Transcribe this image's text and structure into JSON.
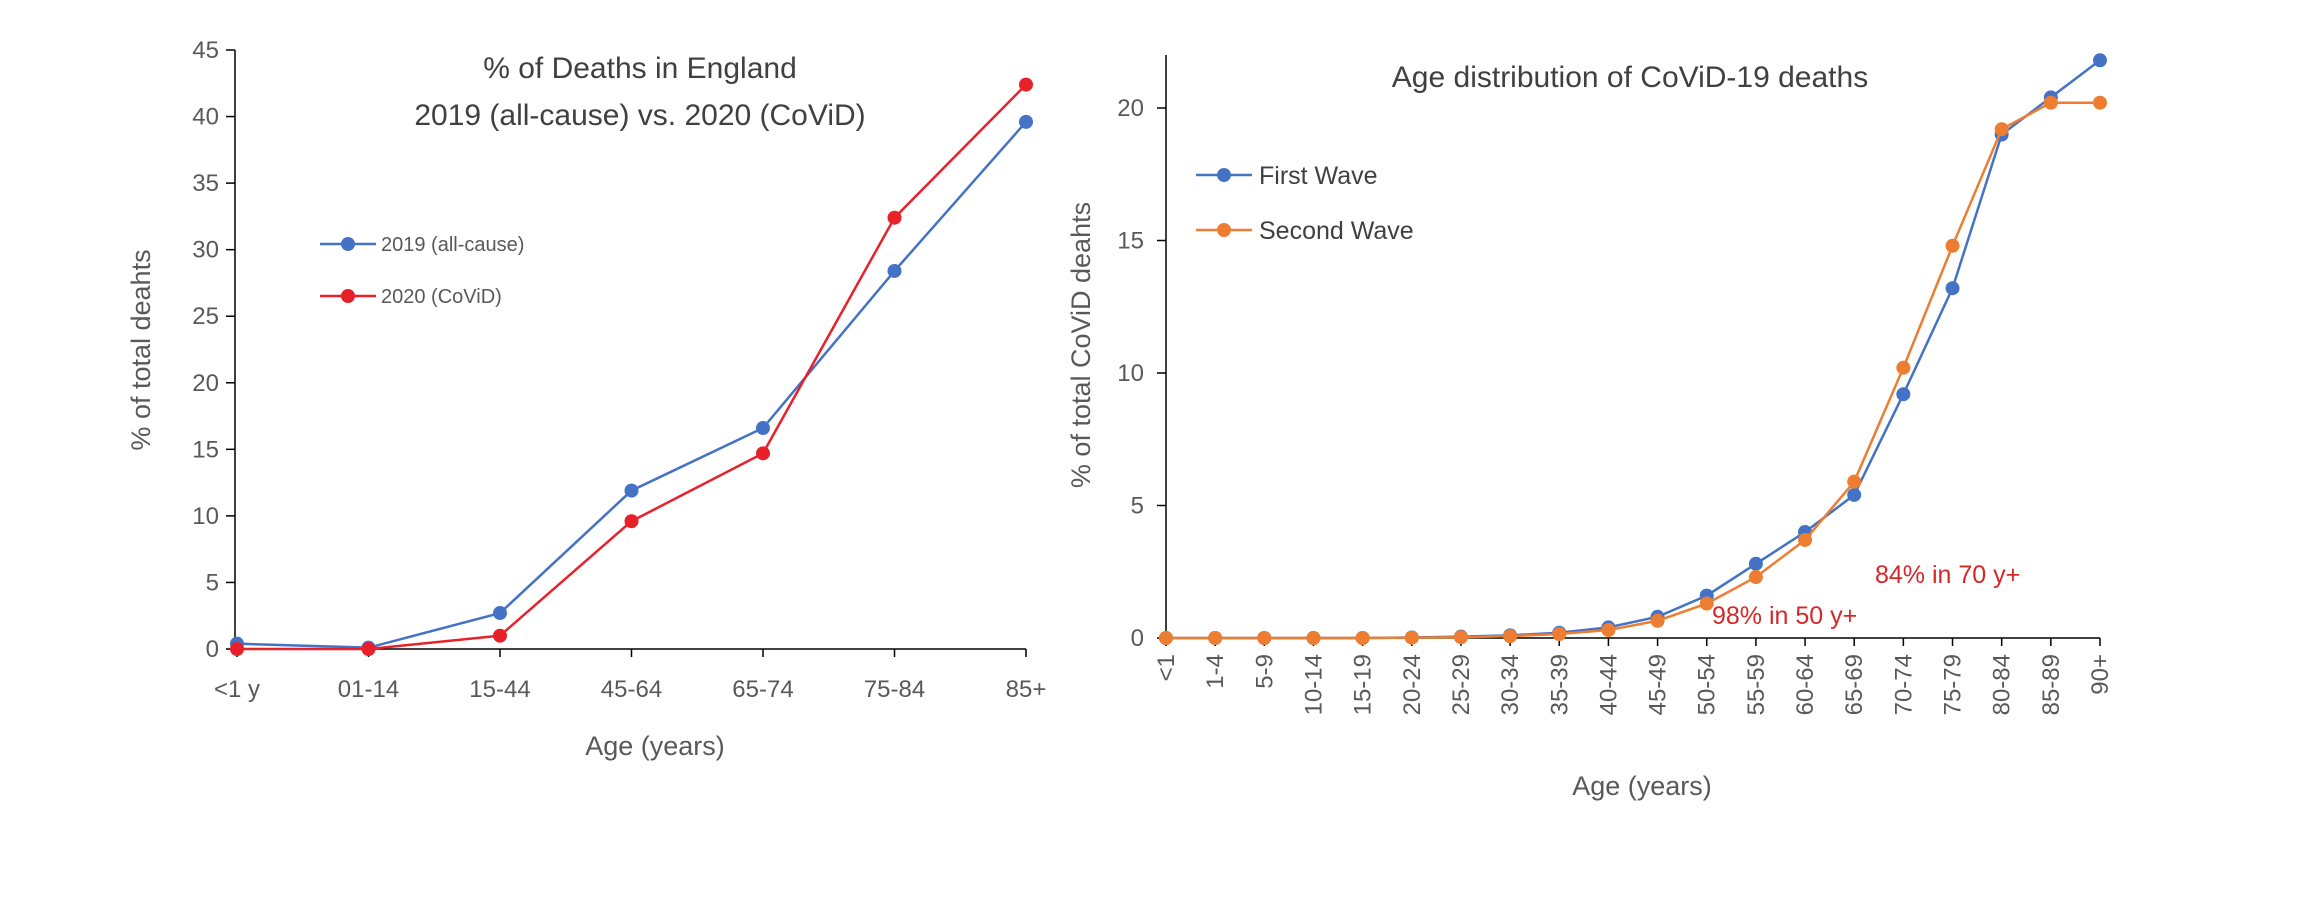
{
  "chart_data": [
    {
      "type": "line",
      "title": [
        "% of Deaths in England",
        "2019 (all-cause) vs. 2020 (CoViD)"
      ],
      "xlabel": "Age (years)",
      "ylabel": "% of total deahts",
      "categories": [
        "<1 y",
        "01-14",
        "15-44",
        "45-64",
        "65-74",
        "75-84",
        "85+"
      ],
      "ylim": [
        0,
        45
      ],
      "yticks": [
        0,
        5,
        10,
        15,
        20,
        25,
        30,
        35,
        40,
        45
      ],
      "legend_position": "left-middle",
      "grid": false,
      "series": [
        {
          "name": "2019 (all-cause)",
          "color": "#4472c4",
          "values": [
            0.4,
            0.1,
            2.7,
            11.9,
            16.6,
            28.4,
            39.6
          ]
        },
        {
          "name": "2020 (CoViD)",
          "color": "#e8202a",
          "values": [
            0.0,
            0.0,
            1.0,
            9.6,
            14.7,
            32.4,
            42.4
          ]
        }
      ]
    },
    {
      "type": "line",
      "title": "Age distribution of CoViD-19 deaths",
      "xlabel": "Age (years)",
      "ylabel": "% of total CoViD deahts",
      "categories": [
        "<1",
        "1-4",
        "5-9",
        "10-14",
        "15-19",
        "20-24",
        "25-29",
        "30-34",
        "35-39",
        "40-44",
        "45-49",
        "50-54",
        "55-59",
        "60-64",
        "65-69",
        "70-74",
        "75-79",
        "80-84",
        "85-89",
        "90+"
      ],
      "ylim": [
        0,
        22
      ],
      "yticks": [
        0,
        5,
        10,
        15,
        20
      ],
      "legend_position": "top-left",
      "grid": false,
      "series": [
        {
          "name": "First Wave",
          "color": "#4472c4",
          "values": [
            0,
            0,
            0,
            0,
            0,
            0.02,
            0.05,
            0.1,
            0.2,
            0.4,
            0.8,
            1.6,
            2.8,
            4.0,
            5.4,
            9.2,
            13.2,
            19.0,
            20.4,
            21.8
          ]
        },
        {
          "name": "Second Wave",
          "color": "#ed7d31",
          "values": [
            0,
            0,
            0,
            0,
            0,
            0.01,
            0.03,
            0.07,
            0.15,
            0.3,
            0.65,
            1.3,
            2.3,
            3.7,
            5.9,
            10.2,
            14.8,
            19.2,
            20.2,
            20.2
          ]
        }
      ],
      "annotations": [
        "98% in 50 y+",
        "84% in 70 y+"
      ]
    }
  ]
}
